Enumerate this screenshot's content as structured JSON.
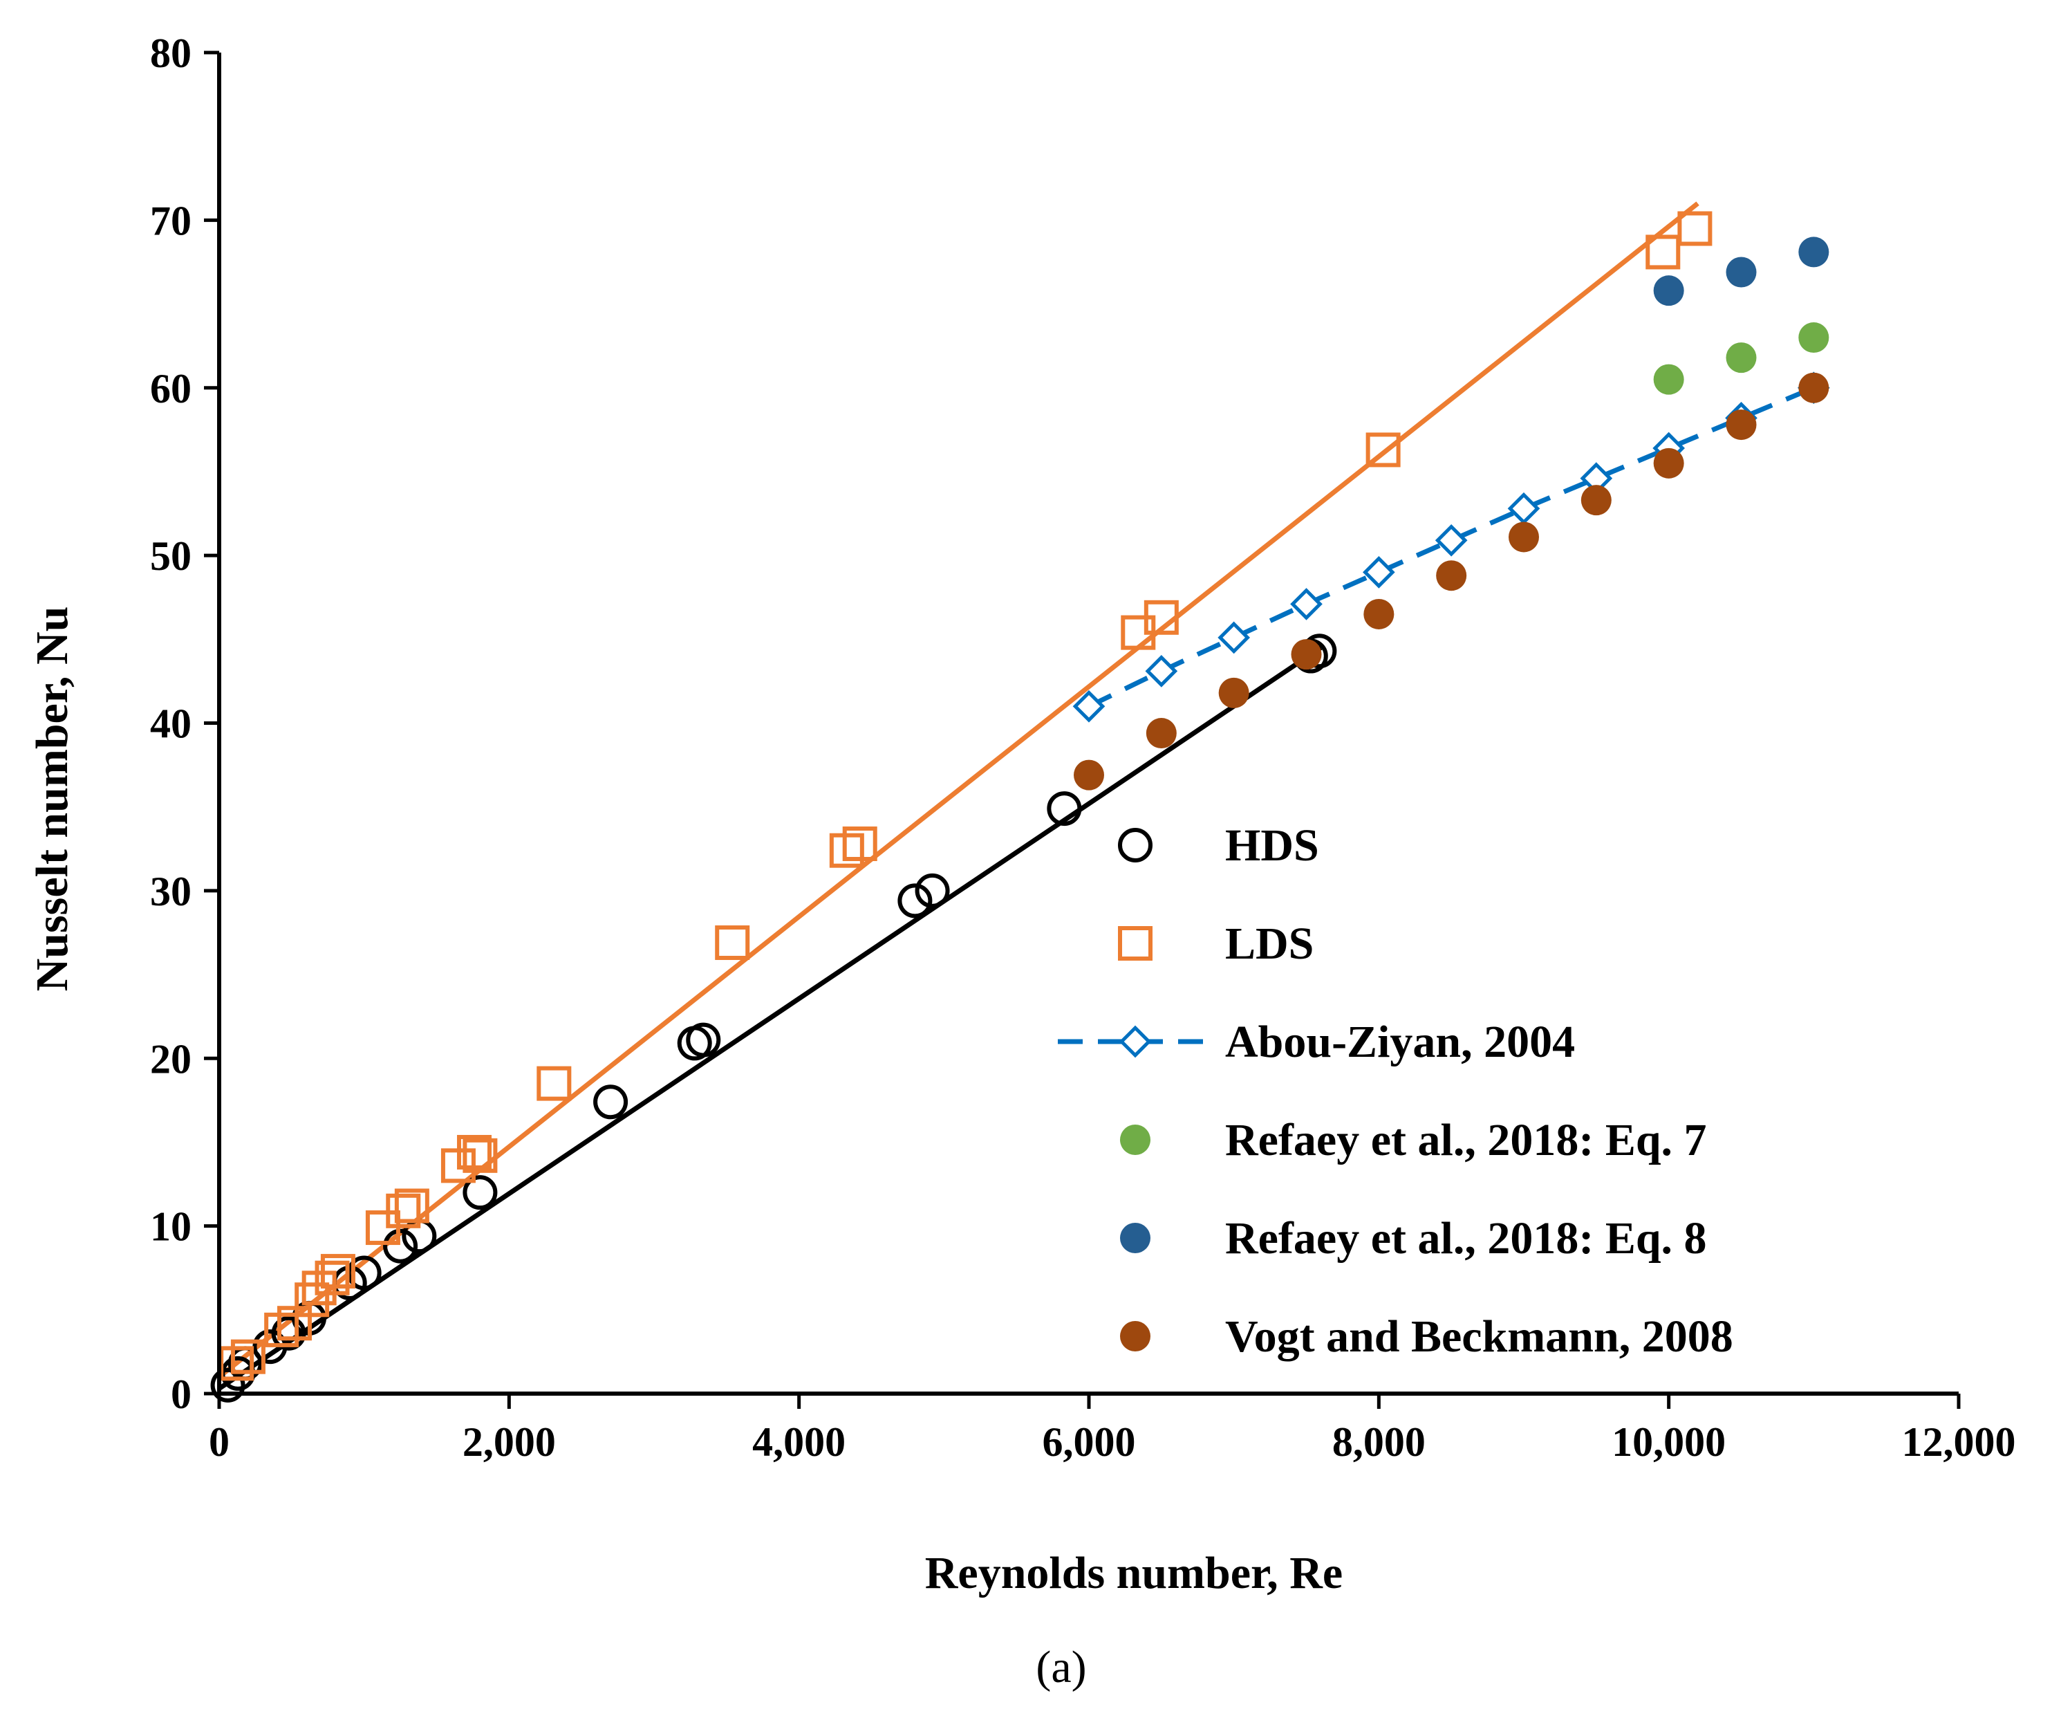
{
  "chart_data": {
    "type": "scatter",
    "title": "",
    "xlabel": "Reynolds number, Re",
    "ylabel": "Nusselt number, Nu",
    "caption": "(a)",
    "xlim": [
      0,
      12000
    ],
    "ylim": [
      0,
      80
    ],
    "grid": false,
    "legend_position": "lower-right",
    "x_ticks": [
      0,
      2000,
      4000,
      6000,
      8000,
      10000,
      12000
    ],
    "x_tick_labels": [
      "0",
      "2,000",
      "4,000",
      "6,000",
      "8,000",
      "10,000",
      "12,000"
    ],
    "y_ticks": [
      0,
      10,
      20,
      30,
      40,
      50,
      60,
      70,
      80
    ],
    "y_tick_labels": [
      "0",
      "10",
      "20",
      "30",
      "40",
      "50",
      "60",
      "70",
      "80"
    ],
    "series": [
      {
        "name": "HDS",
        "marker": "open-circle",
        "color": "#000000",
        "points": [
          [
            60,
            0.5
          ],
          [
            130,
            1.2
          ],
          [
            180,
            1.8
          ],
          [
            350,
            2.8
          ],
          [
            480,
            3.6
          ],
          [
            620,
            4.5
          ],
          [
            900,
            6.6
          ],
          [
            1000,
            7.2
          ],
          [
            1250,
            8.8
          ],
          [
            1380,
            9.4
          ],
          [
            1800,
            12.0
          ],
          [
            2700,
            17.4
          ],
          [
            3280,
            20.9
          ],
          [
            3340,
            21.1
          ],
          [
            4800,
            29.4
          ],
          [
            4920,
            30.0
          ],
          [
            5830,
            34.9
          ],
          [
            7530,
            44.0
          ],
          [
            7590,
            44.3
          ]
        ],
        "trendline": [
          [
            0,
            0.3
          ],
          [
            7600,
            44.5
          ]
        ]
      },
      {
        "name": "LDS",
        "marker": "open-square",
        "color": "#ED7D31",
        "points": [
          [
            120,
            1.8
          ],
          [
            200,
            2.2
          ],
          [
            430,
            3.8
          ],
          [
            520,
            4.2
          ],
          [
            640,
            5.6
          ],
          [
            690,
            6.3
          ],
          [
            780,
            6.9
          ],
          [
            820,
            7.3
          ],
          [
            1130,
            9.9
          ],
          [
            1270,
            10.9
          ],
          [
            1330,
            11.2
          ],
          [
            1650,
            13.6
          ],
          [
            1760,
            14.4
          ],
          [
            1800,
            14.2
          ],
          [
            2310,
            18.5
          ],
          [
            3540,
            26.9
          ],
          [
            4330,
            32.4
          ],
          [
            4420,
            32.8
          ],
          [
            6340,
            45.4
          ],
          [
            6500,
            46.3
          ],
          [
            8030,
            56.3
          ],
          [
            9960,
            68.1
          ],
          [
            10180,
            69.5
          ]
        ],
        "trendline": [
          [
            0,
            1.0
          ],
          [
            10200,
            71.0
          ]
        ]
      },
      {
        "name": "Abou-Ziyan, 2004",
        "marker": "open-diamond",
        "line": "dashed",
        "color": "#0070C0",
        "points": [
          [
            6000,
            41.0
          ],
          [
            6500,
            43.1
          ],
          [
            7000,
            45.1
          ],
          [
            7500,
            47.1
          ],
          [
            8000,
            49.0
          ],
          [
            8500,
            50.9
          ],
          [
            9000,
            52.8
          ],
          [
            9500,
            54.6
          ],
          [
            10000,
            56.4
          ],
          [
            10500,
            58.2
          ],
          [
            11000,
            60.0
          ]
        ]
      },
      {
        "name": "Refaey et al., 2018: Eq. 7",
        "marker": "filled-circle",
        "color": "#70AD47",
        "points": [
          [
            10000,
            60.5
          ],
          [
            10500,
            61.8
          ],
          [
            11000,
            63.0
          ]
        ]
      },
      {
        "name": "Refaey et al., 2018: Eq. 8",
        "marker": "filled-circle",
        "color": "#255E91",
        "points": [
          [
            10000,
            65.8
          ],
          [
            10500,
            66.9
          ],
          [
            11000,
            68.1
          ]
        ]
      },
      {
        "name": "Vogt and Beckmann, 2008",
        "marker": "filled-circle",
        "color": "#9E480E",
        "points": [
          [
            6000,
            36.9
          ],
          [
            6500,
            39.4
          ],
          [
            7000,
            41.8
          ],
          [
            7500,
            44.1
          ],
          [
            8000,
            46.5
          ],
          [
            8500,
            48.8
          ],
          [
            9000,
            51.1
          ],
          [
            9500,
            53.3
          ],
          [
            10000,
            55.5
          ],
          [
            10500,
            57.8
          ],
          [
            11000,
            60.0
          ]
        ]
      }
    ]
  }
}
